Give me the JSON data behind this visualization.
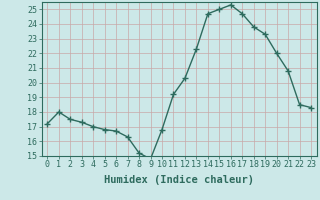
{
  "x": [
    0,
    1,
    2,
    3,
    4,
    5,
    6,
    7,
    8,
    9,
    10,
    11,
    12,
    13,
    14,
    15,
    16,
    17,
    18,
    19,
    20,
    21,
    22,
    23
  ],
  "y": [
    17.2,
    18.0,
    17.5,
    17.3,
    17.0,
    16.8,
    16.7,
    16.3,
    15.2,
    14.8,
    16.8,
    19.2,
    20.3,
    22.3,
    24.7,
    25.0,
    25.3,
    24.7,
    23.8,
    23.3,
    22.0,
    20.8,
    18.5,
    18.3
  ],
  "xlabel": "Humidex (Indice chaleur)",
  "ylim": [
    15,
    25.5
  ],
  "yticks": [
    15,
    16,
    17,
    18,
    19,
    20,
    21,
    22,
    23,
    24,
    25
  ],
  "xticks": [
    0,
    1,
    2,
    3,
    4,
    5,
    6,
    7,
    8,
    9,
    10,
    11,
    12,
    13,
    14,
    15,
    16,
    17,
    18,
    19,
    20,
    21,
    22,
    23
  ],
  "line_color": "#2e6b5e",
  "marker": "+",
  "marker_size": 4,
  "bg_color": "#cce8e8",
  "grid_color": "#b8d8d8",
  "axes_color": "#2e6b5e",
  "label_color": "#2e6b5e",
  "tick_color": "#2e6b5e",
  "xlabel_fontsize": 7.5,
  "tick_fontsize": 6,
  "line_width": 1.0
}
